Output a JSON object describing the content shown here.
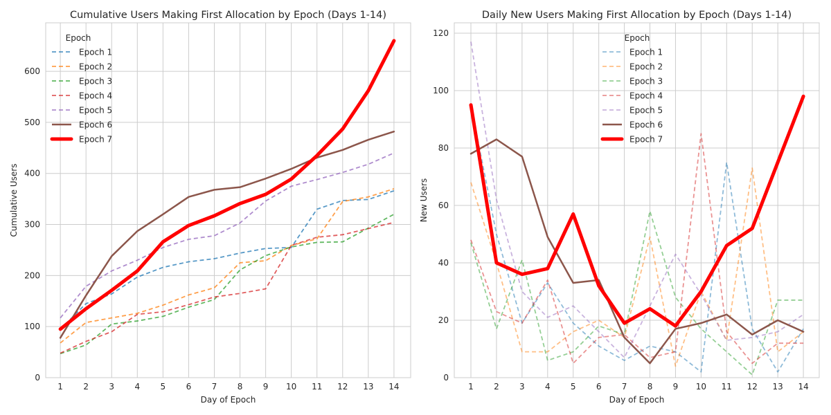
{
  "chart_data": [
    {
      "type": "line",
      "title": "Cumulative Users Making First Allocation by Epoch (Days 1-14)",
      "xlabel": "Day of Epoch",
      "ylabel": "Cumulative Users",
      "x": [
        1,
        2,
        3,
        4,
        5,
        6,
        7,
        8,
        9,
        10,
        11,
        12,
        13,
        14
      ],
      "xlim": [
        0.43,
        14.65
      ],
      "ylim": [
        0,
        695
      ],
      "yticks": [
        0,
        100,
        200,
        300,
        400,
        500,
        600
      ],
      "grid": true,
      "legend": {
        "title": "Epoch",
        "placement": "upper-left"
      },
      "series": [
        {
          "name": "Epoch 1",
          "color": "#1f77b4",
          "style": "dashed",
          "values": [
            95,
            145,
            164,
            197,
            216,
            227,
            233,
            244,
            253,
            255,
            330,
            347,
            349,
            366
          ]
        },
        {
          "name": "Epoch 2",
          "color": "#ff7f0e",
          "style": "dashed",
          "values": [
            68,
            108,
            117,
            126,
            142,
            162,
            176,
            225,
            229,
            259,
            272,
            345,
            354,
            370
          ]
        },
        {
          "name": "Epoch 3",
          "color": "#2ca02c",
          "style": "dashed",
          "values": [
            47,
            64,
            105,
            111,
            120,
            138,
            153,
            211,
            239,
            256,
            265,
            266,
            293,
            320
          ]
        },
        {
          "name": "Epoch 4",
          "color": "#d62728",
          "style": "dashed",
          "values": [
            48,
            71,
            90,
            124,
            129,
            143,
            158,
            165,
            174,
            259,
            275,
            280,
            292,
            304
          ]
        },
        {
          "name": "Epoch 5",
          "color": "#9467bd",
          "style": "dashed",
          "values": [
            117,
            179,
            209,
            230,
            255,
            271,
            278,
            303,
            346,
            375,
            388,
            402,
            418,
            440
          ]
        },
        {
          "name": "Epoch 6",
          "color": "#8c564b",
          "style": "solid",
          "values": [
            78,
            161,
            238,
            287,
            320,
            354,
            368,
            373,
            390,
            409,
            431,
            446,
            466,
            482
          ]
        },
        {
          "name": "Epoch 7",
          "color": "#ff0000",
          "style": "bold",
          "values": [
            95,
            135,
            171,
            209,
            266,
            298,
            317,
            341,
            359,
            389,
            435,
            487,
            562,
            660
          ]
        }
      ]
    },
    {
      "type": "line",
      "title": "Daily New Users Making First Allocation by Epoch (Days 1-14)",
      "xlabel": "Day of Epoch",
      "ylabel": "New Users",
      "x": [
        1,
        2,
        3,
        4,
        5,
        6,
        7,
        8,
        9,
        10,
        11,
        12,
        13,
        14
      ],
      "xlim": [
        0.35,
        14.62
      ],
      "ylim": [
        0,
        123.6
      ],
      "yticks": [
        0,
        20,
        40,
        60,
        80,
        100,
        120
      ],
      "grid": true,
      "legend": {
        "title": "Epoch",
        "placement": "upper-center"
      },
      "series": [
        {
          "name": "Epoch 1",
          "color": "#1f77b4",
          "style": "dashed",
          "values": [
            95,
            50,
            19,
            33,
            19,
            11,
            6,
            11,
            9,
            2,
            75,
            17,
            2,
            17
          ]
        },
        {
          "name": "Epoch 2",
          "color": "#ff7f0e",
          "style": "dashed",
          "values": [
            68,
            40,
            9,
            9,
            16,
            20,
            14,
            49,
            4,
            30,
            13,
            73,
            9,
            16
          ]
        },
        {
          "name": "Epoch 3",
          "color": "#2ca02c",
          "style": "dashed",
          "values": [
            47,
            17,
            41,
            6,
            9,
            18,
            15,
            58,
            28,
            17,
            9,
            1,
            27,
            27
          ]
        },
        {
          "name": "Epoch 4",
          "color": "#d62728",
          "style": "dashed",
          "values": [
            48,
            23,
            19,
            34,
            5,
            14,
            15,
            7,
            9,
            85,
            16,
            5,
            12,
            12
          ]
        },
        {
          "name": "Epoch 5",
          "color": "#9467bd",
          "style": "dashed",
          "values": [
            117,
            62,
            30,
            21,
            25,
            16,
            7,
            25,
            43,
            29,
            13,
            14,
            16,
            22
          ]
        },
        {
          "name": "Epoch 6",
          "color": "#8c564b",
          "style": "solid",
          "values": [
            78,
            83,
            77,
            49,
            33,
            34,
            14,
            5,
            17,
            19,
            22,
            15,
            20,
            16
          ]
        },
        {
          "name": "Epoch 7",
          "color": "#ff0000",
          "style": "bold",
          "values": [
            95,
            40,
            36,
            38,
            57,
            32,
            19,
            24,
            18,
            30,
            46,
            52,
            75,
            98
          ]
        }
      ]
    }
  ]
}
